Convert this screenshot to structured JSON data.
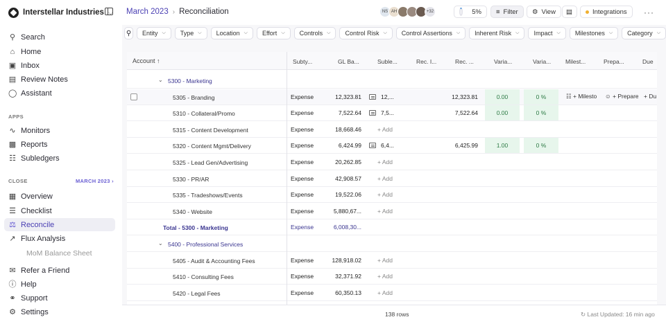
{
  "workspace": {
    "name": "Interstellar Industries"
  },
  "nav": {
    "search": "Search",
    "home": "Home",
    "inbox": "Inbox",
    "review_notes": "Review Notes",
    "assistant": "Assistant"
  },
  "apps": {
    "section": "APPS",
    "monitors": "Monitors",
    "reports": "Reports",
    "subledgers": "Subledgers"
  },
  "close": {
    "section": "CLOSE",
    "period": "MARCH 2023",
    "overview": "Overview",
    "checklist": "Checklist",
    "reconcile": "Reconcile",
    "flux": "Flux Analysis",
    "mom": "MoM Balance Sheet"
  },
  "bottom_nav": {
    "refer": "Refer a Friend",
    "help": "Help",
    "support": "Support",
    "settings": "Settings"
  },
  "breadcrumb": {
    "period": "March 2023",
    "page": "Reconciliation"
  },
  "avatars": {
    "initials1": "NS",
    "initials2": "AH",
    "more": "+32"
  },
  "progress": {
    "label": "5%",
    "value": 5
  },
  "toolbar": {
    "filter": "Filter",
    "view": "View",
    "integrations": "Integrations"
  },
  "filters": [
    "Entity",
    "Type",
    "Location",
    "Effort",
    "Controls",
    "Control Risk",
    "Control Assertions",
    "Inherent Risk",
    "Impact",
    "Milestones",
    "Category"
  ],
  "columns": {
    "account": "Account",
    "subtype": "Subty...",
    "gl_balance": "GL Ba...",
    "subledger": "Suble...",
    "rec_i": "Rec. I...",
    "rec2": "Rec. ...",
    "var1": "Varia...",
    "var2": "Varia...",
    "milestone": "Milest...",
    "prepare": "Prepa...",
    "due": "Due"
  },
  "rows": [
    {
      "type": "group",
      "account": "5300 - Marketing"
    },
    {
      "type": "item",
      "account": "5305 - Branding",
      "subtype": "Expense",
      "gl": "12,323.81",
      "sub": "12,...",
      "rec": "12,323.81",
      "var": "0.00",
      "varpct": "0 %",
      "milestone": "+ Milesto",
      "prepare": "+ Prepare",
      "due": "+ Du"
    },
    {
      "type": "item",
      "account": "5310 - Collateral/Promo",
      "subtype": "Expense",
      "gl": "7,522.64",
      "sub": "7,5...",
      "rec": "7,522.64",
      "var": "0.00",
      "varpct": "0 %"
    },
    {
      "type": "item",
      "account": "5315 - Content Development",
      "subtype": "Expense",
      "gl": "18,668.46",
      "add": "+ Add"
    },
    {
      "type": "item",
      "account": "5320 - Content Mgmt/Delivery",
      "subtype": "Expense",
      "gl": "6,424.99",
      "sub": "6,4...",
      "rec": "6,425.99",
      "var": "1.00",
      "varpct": "0 %"
    },
    {
      "type": "item",
      "account": "5325 - Lead Gen/Advertising",
      "subtype": "Expense",
      "gl": "20,262.85",
      "add": "+ Add"
    },
    {
      "type": "item",
      "account": "5330 - PR/AR",
      "subtype": "Expense",
      "gl": "42,908.57",
      "add": "+ Add"
    },
    {
      "type": "item",
      "account": "5335 - Tradeshows/Events",
      "subtype": "Expense",
      "gl": "19,522.06",
      "add": "+ Add"
    },
    {
      "type": "item",
      "account": "5340 - Website",
      "subtype": "Expense",
      "gl": "5,880,67...",
      "add": "+ Add"
    },
    {
      "type": "total",
      "account": "Total - 5300 - Marketing",
      "subtype": "Expense",
      "gl": "6,008,30..."
    },
    {
      "type": "group",
      "account": "5400 - Professional Services"
    },
    {
      "type": "item",
      "account": "5405 - Audit & Accounting Fees",
      "subtype": "Expense",
      "gl": "128,918.02",
      "add": "+ Add"
    },
    {
      "type": "item",
      "account": "5410 - Consulting Fees",
      "subtype": "Expense",
      "gl": "32,371.92",
      "add": "+ Add"
    },
    {
      "type": "item",
      "account": "5420 - Legal Fees",
      "subtype": "Expense",
      "gl": "60,350.13",
      "add": "+ Add"
    }
  ],
  "footer": {
    "rows": "138 rows",
    "updated": "Last Updated: 16 min ago"
  }
}
